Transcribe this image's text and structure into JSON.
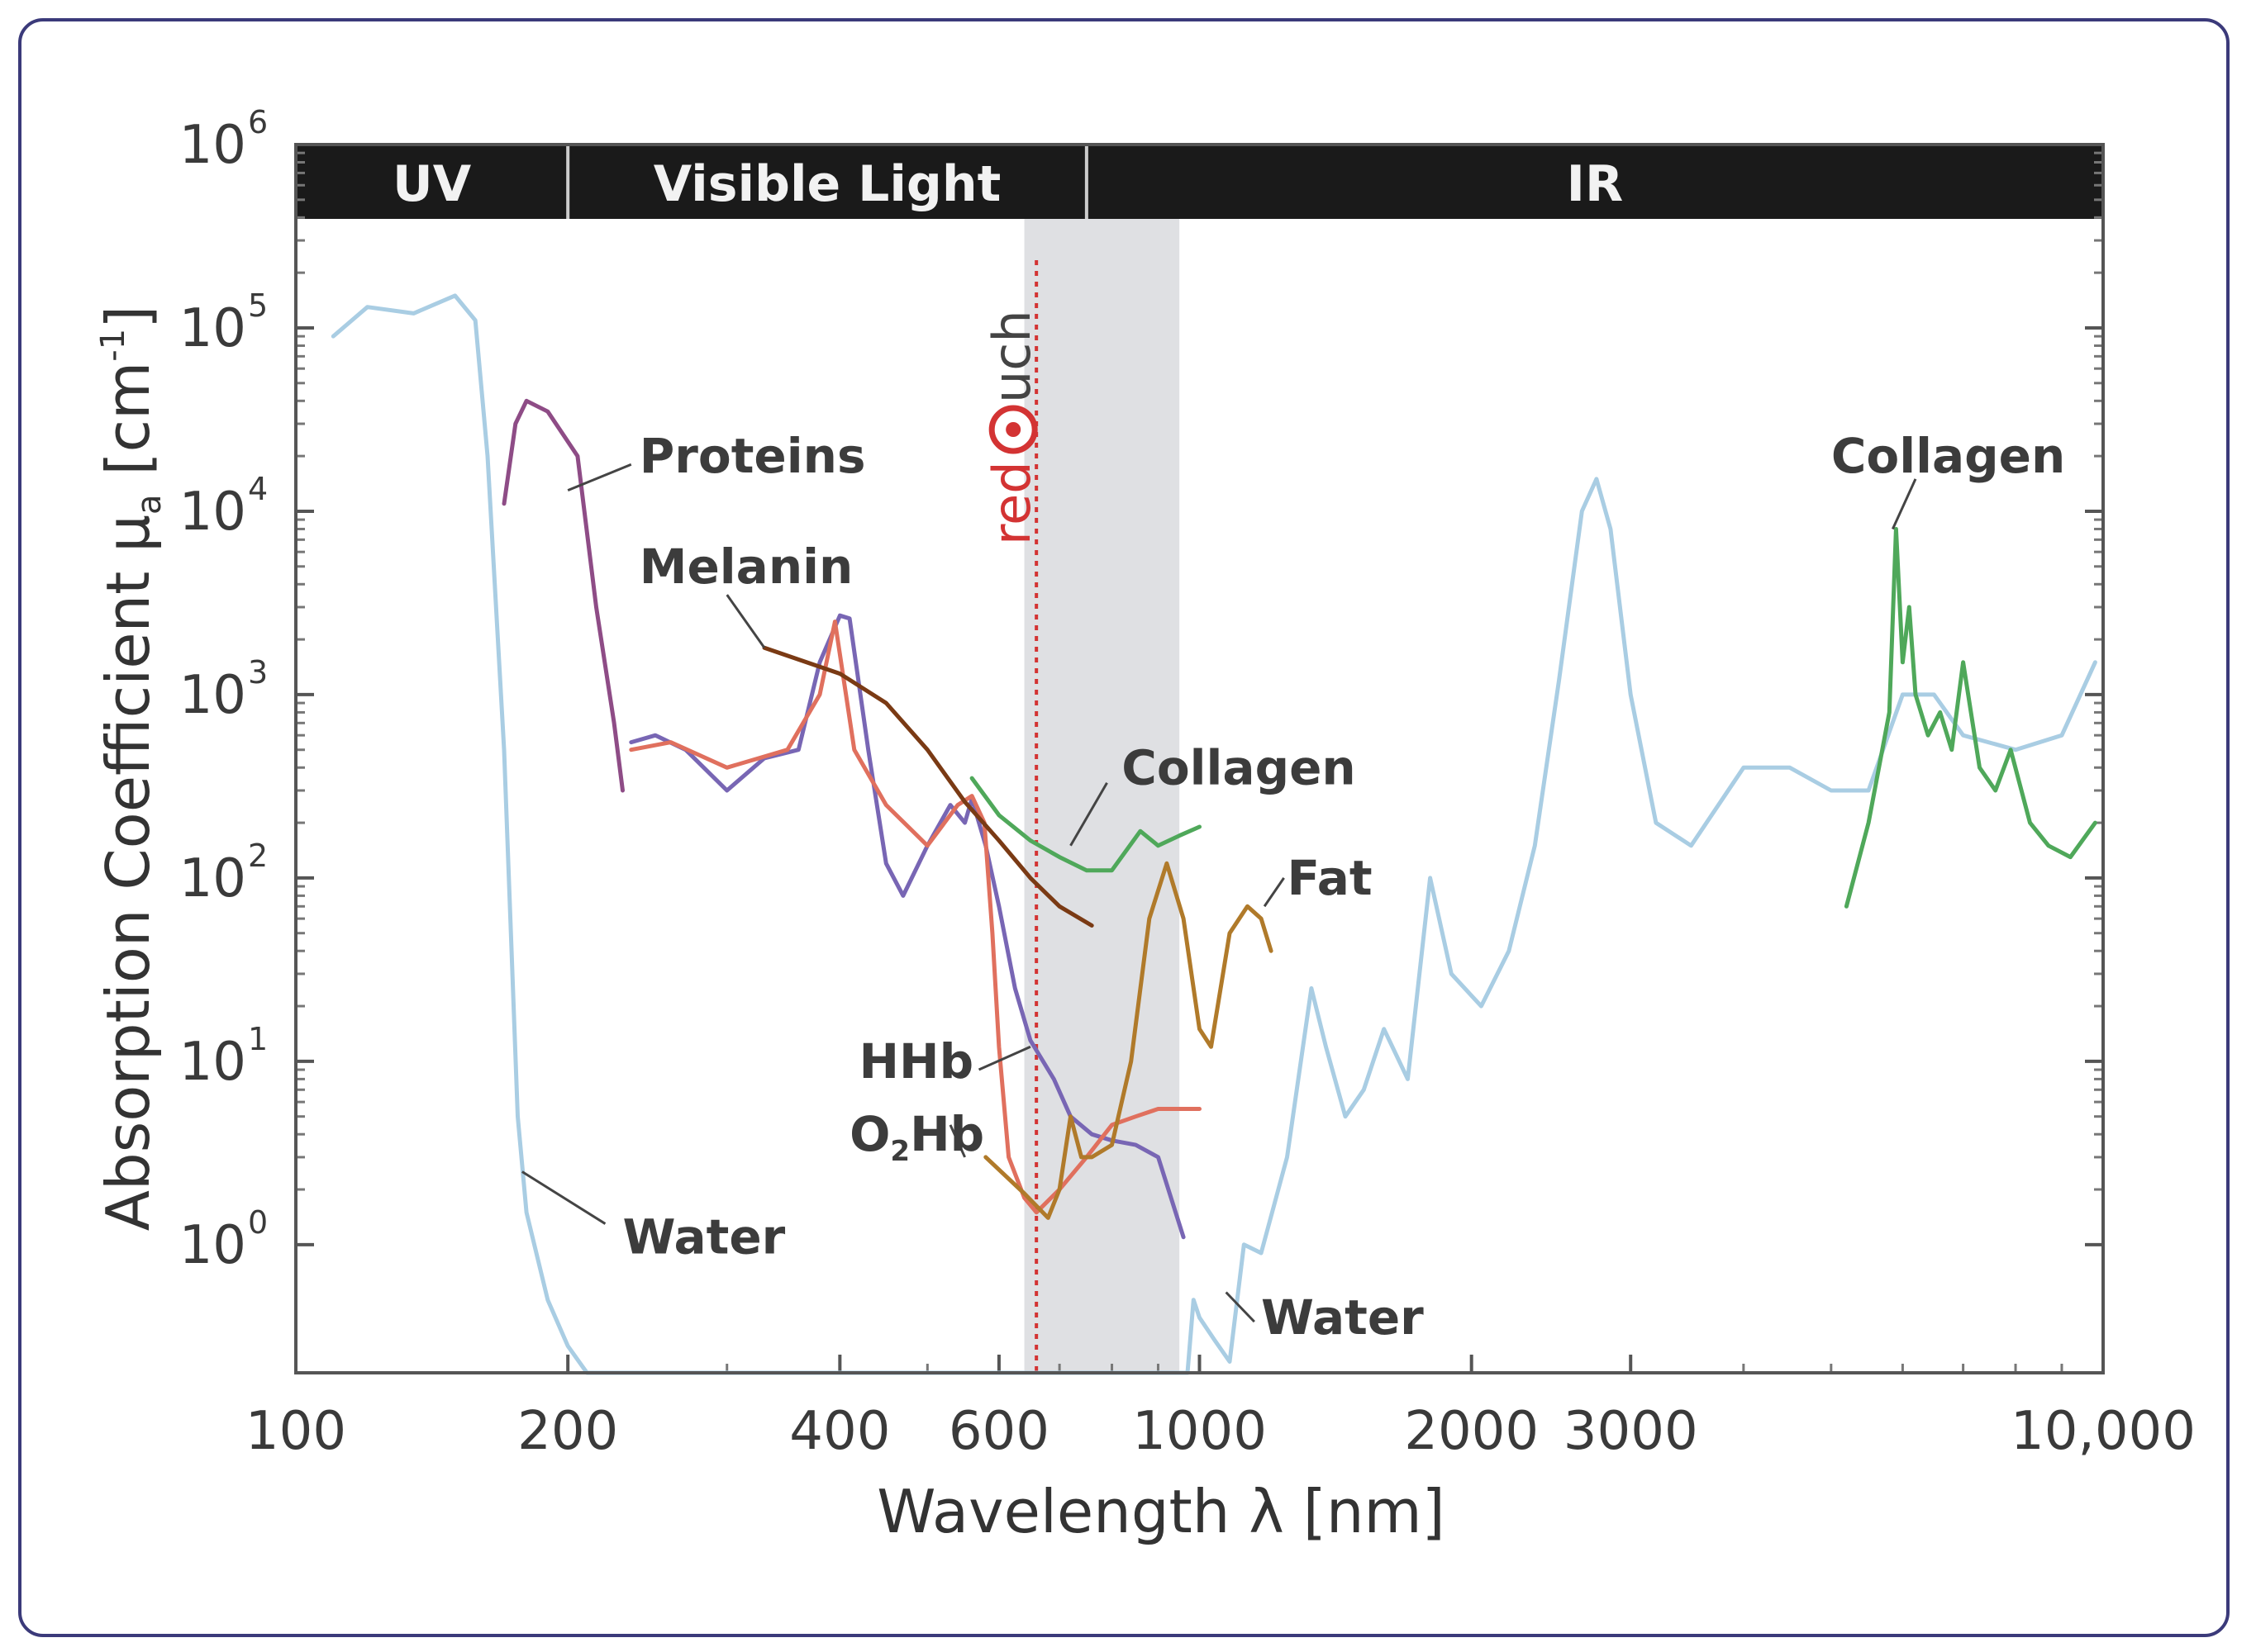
{
  "chart_data": {
    "type": "line",
    "xscale": "log",
    "yscale": "log",
    "xlim": [
      100,
      10000
    ],
    "ylim": [
      0.2,
      1000000
    ],
    "xlabel": "Wavelength λ [nm]",
    "ylabel_parts": {
      "main": "Absorption Coefficient μ",
      "sub": "a",
      "unit": " [cm",
      "unit_sup": "-1",
      "close": "]"
    },
    "xticks": [
      {
        "value": 100,
        "label": "100"
      },
      {
        "value": 200,
        "label": "200"
      },
      {
        "value": 400,
        "label": "400"
      },
      {
        "value": 600,
        "label": "600"
      },
      {
        "value": 1000,
        "label": "1000"
      },
      {
        "value": 2000,
        "label": "2000"
      },
      {
        "value": 3000,
        "label": "3000"
      },
      {
        "value": 10000,
        "label": "10,000"
      }
    ],
    "yticks": [
      {
        "value": 1,
        "base": "10",
        "exp": "0"
      },
      {
        "value": 10,
        "base": "10",
        "exp": "1"
      },
      {
        "value": 100,
        "base": "10",
        "exp": "2"
      },
      {
        "value": 1000,
        "base": "10",
        "exp": "3"
      },
      {
        "value": 10000,
        "base": "10",
        "exp": "4"
      },
      {
        "value": 100000,
        "base": "10",
        "exp": "5"
      },
      {
        "value": 1000000,
        "base": "10",
        "exp": "6"
      }
    ],
    "bands": [
      {
        "label": "UV",
        "from": 100,
        "to": 200
      },
      {
        "label": "Visible Light",
        "from": 200,
        "to": 750
      },
      {
        "label": "IR",
        "from": 750,
        "to": 10000
      }
    ],
    "highlight": {
      "from": 640,
      "to": 950,
      "line": 660
    },
    "brand": {
      "pre": "red",
      "post": "uch"
    },
    "colors": {
      "water": "#a9cde3",
      "proteins": "#8e4c86",
      "melanin": "#7a3a14",
      "hhb": "#7866b4",
      "o2hb": "#e0705e",
      "collagen": "#4fa85a",
      "fat": "#b07a2a",
      "highlight": "#dfe0e3",
      "marker": "#d33333",
      "band_bg": "#1a1a1a"
    },
    "series": [
      {
        "name": "Water",
        "color_key": "water",
        "points": [
          [
            110,
            90000
          ],
          [
            120,
            130000
          ],
          [
            135,
            120000
          ],
          [
            150,
            150000
          ],
          [
            158,
            110000
          ],
          [
            163,
            20000
          ],
          [
            170,
            500
          ],
          [
            176,
            5
          ],
          [
            180,
            1.5
          ],
          [
            190,
            0.5
          ],
          [
            200,
            0.28
          ],
          [
            210,
            0.2
          ],
          [
            970,
            0.2
          ],
          [
            985,
            0.5
          ],
          [
            1000,
            0.4
          ],
          [
            1040,
            0.3
          ],
          [
            1080,
            0.23
          ],
          [
            1120,
            1
          ],
          [
            1170,
            0.9
          ],
          [
            1250,
            3
          ],
          [
            1330,
            25
          ],
          [
            1380,
            12
          ],
          [
            1450,
            5
          ],
          [
            1520,
            7
          ],
          [
            1600,
            15
          ],
          [
            1700,
            8
          ],
          [
            1800,
            100
          ],
          [
            1900,
            30
          ],
          [
            2050,
            20
          ],
          [
            2200,
            40
          ],
          [
            2350,
            150
          ],
          [
            2500,
            1200
          ],
          [
            2650,
            10000
          ],
          [
            2750,
            15000
          ],
          [
            2850,
            8000
          ],
          [
            3000,
            1000
          ],
          [
            3200,
            200
          ],
          [
            3500,
            150
          ],
          [
            4000,
            400
          ],
          [
            4500,
            400
          ],
          [
            5000,
            300
          ],
          [
            5500,
            300
          ],
          [
            6000,
            1000
          ],
          [
            6500,
            1000
          ],
          [
            7000,
            600
          ],
          [
            8000,
            500
          ],
          [
            9000,
            600
          ],
          [
            9800,
            1500
          ]
        ]
      },
      {
        "name": "Proteins",
        "color_key": "proteins",
        "points": [
          [
            170,
            11000
          ],
          [
            175,
            30000
          ],
          [
            180,
            40000
          ],
          [
            190,
            35000
          ],
          [
            205,
            20000
          ],
          [
            215,
            3000
          ],
          [
            225,
            700
          ],
          [
            230,
            300
          ]
        ]
      },
      {
        "name": "HHb",
        "color_key": "hhb",
        "points": [
          [
            235,
            550
          ],
          [
            250,
            600
          ],
          [
            270,
            500
          ],
          [
            300,
            300
          ],
          [
            330,
            450
          ],
          [
            360,
            500
          ],
          [
            380,
            1500
          ],
          [
            400,
            2700
          ],
          [
            410,
            2600
          ],
          [
            430,
            500
          ],
          [
            450,
            120
          ],
          [
            470,
            80
          ],
          [
            500,
            150
          ],
          [
            530,
            250
          ],
          [
            550,
            200
          ],
          [
            560,
            270
          ],
          [
            580,
            150
          ],
          [
            600,
            70
          ],
          [
            625,
            25
          ],
          [
            650,
            13
          ],
          [
            690,
            8
          ],
          [
            720,
            5
          ],
          [
            760,
            4
          ],
          [
            800,
            3.7
          ],
          [
            850,
            3.5
          ],
          [
            900,
            3
          ],
          [
            960,
            1.1
          ]
        ]
      },
      {
        "name": "O2Hb",
        "color_key": "o2hb",
        "points": [
          [
            235,
            500
          ],
          [
            260,
            550
          ],
          [
            300,
            400
          ],
          [
            350,
            500
          ],
          [
            380,
            1000
          ],
          [
            395,
            2500
          ],
          [
            415,
            500
          ],
          [
            450,
            250
          ],
          [
            500,
            150
          ],
          [
            540,
            250
          ],
          [
            560,
            280
          ],
          [
            578,
            200
          ],
          [
            590,
            50
          ],
          [
            600,
            12
          ],
          [
            615,
            3
          ],
          [
            640,
            1.8
          ],
          [
            660,
            1.5
          ],
          [
            700,
            2.0
          ],
          [
            750,
            3
          ],
          [
            800,
            4.5
          ],
          [
            850,
            5
          ],
          [
            900,
            5.5
          ],
          [
            1000,
            5.5
          ]
        ]
      },
      {
        "name": "Melanin",
        "color_key": "melanin",
        "points": [
          [
            330,
            1800
          ],
          [
            400,
            1300
          ],
          [
            450,
            900
          ],
          [
            500,
            500
          ],
          [
            550,
            260
          ],
          [
            600,
            160
          ],
          [
            650,
            100
          ],
          [
            700,
            70
          ],
          [
            760,
            55
          ]
        ]
      },
      {
        "name": "Collagen",
        "color_key": "collagen",
        "points": [
          [
            560,
            350
          ],
          [
            600,
            220
          ],
          [
            650,
            160
          ],
          [
            700,
            130
          ],
          [
            750,
            110
          ],
          [
            800,
            110
          ],
          [
            860,
            180
          ],
          [
            900,
            150
          ],
          [
            950,
            170
          ],
          [
            1000,
            190
          ]
        ]
      },
      {
        "name": "Fat",
        "color_key": "fat",
        "points": [
          [
            580,
            3
          ],
          [
            640,
            1.9
          ],
          [
            680,
            1.4
          ],
          [
            700,
            2
          ],
          [
            720,
            5
          ],
          [
            740,
            3
          ],
          [
            760,
            3
          ],
          [
            800,
            3.5
          ],
          [
            840,
            10
          ],
          [
            880,
            60
          ],
          [
            920,
            120
          ],
          [
            960,
            60
          ],
          [
            1000,
            15
          ],
          [
            1030,
            12
          ],
          [
            1080,
            50
          ],
          [
            1130,
            70
          ],
          [
            1170,
            60
          ],
          [
            1200,
            40
          ]
        ]
      },
      {
        "name": "Collagen",
        "color_key": "collagen",
        "points": [
          [
            5200,
            70
          ],
          [
            5500,
            200
          ],
          [
            5800,
            800
          ],
          [
            5900,
            8000
          ],
          [
            6000,
            1500
          ],
          [
            6100,
            3000
          ],
          [
            6200,
            1000
          ],
          [
            6400,
            600
          ],
          [
            6600,
            800
          ],
          [
            6800,
            500
          ],
          [
            7000,
            1500
          ],
          [
            7300,
            400
          ],
          [
            7600,
            300
          ],
          [
            7900,
            500
          ],
          [
            8300,
            200
          ],
          [
            8700,
            150
          ],
          [
            9200,
            130
          ],
          [
            9800,
            200
          ]
        ]
      }
    ],
    "annotations": [
      {
        "text": "Proteins",
        "x": 240,
        "y": 20000,
        "lx1": 200,
        "ly1": 13000,
        "lx2": 235,
        "ly2": 18000
      },
      {
        "text": "Melanin",
        "x": 240,
        "y": 5000,
        "lx1": 330,
        "ly1": 1800,
        "lx2": 300,
        "ly2": 3500
      },
      {
        "text": "Collagen",
        "x": 820,
        "y": 400,
        "lx1": 720,
        "ly1": 150,
        "lx2": 790,
        "ly2": 330
      },
      {
        "text": "Fat",
        "x": 1250,
        "y": 100,
        "lx1": 1180,
        "ly1": 70,
        "lx2": 1240,
        "ly2": 100
      },
      {
        "text": "HHb",
        "x": 420,
        "y": 10,
        "lx1": 650,
        "ly1": 12,
        "lx2": 570,
        "ly2": 9
      },
      {
        "text": "O2Hb",
        "x": 410,
        "y": 4,
        "lx1": 550,
        "ly1": 3,
        "lx2": 530,
        "ly2": 4.5
      },
      {
        "text": "Water",
        "x": 230,
        "y": 1.1,
        "lx1": 178,
        "ly1": 2.5,
        "lx2": 220,
        "ly2": 1.3
      },
      {
        "text": "Water",
        "x": 1170,
        "y": 0.4,
        "lx1": 1070,
        "ly1": 0.55,
        "lx2": 1150,
        "ly2": 0.38
      },
      {
        "text": "Collagen",
        "x": 5000,
        "y": 20000,
        "lx1": 5850,
        "ly1": 8000,
        "lx2": 6200,
        "ly2": 15000
      }
    ]
  }
}
